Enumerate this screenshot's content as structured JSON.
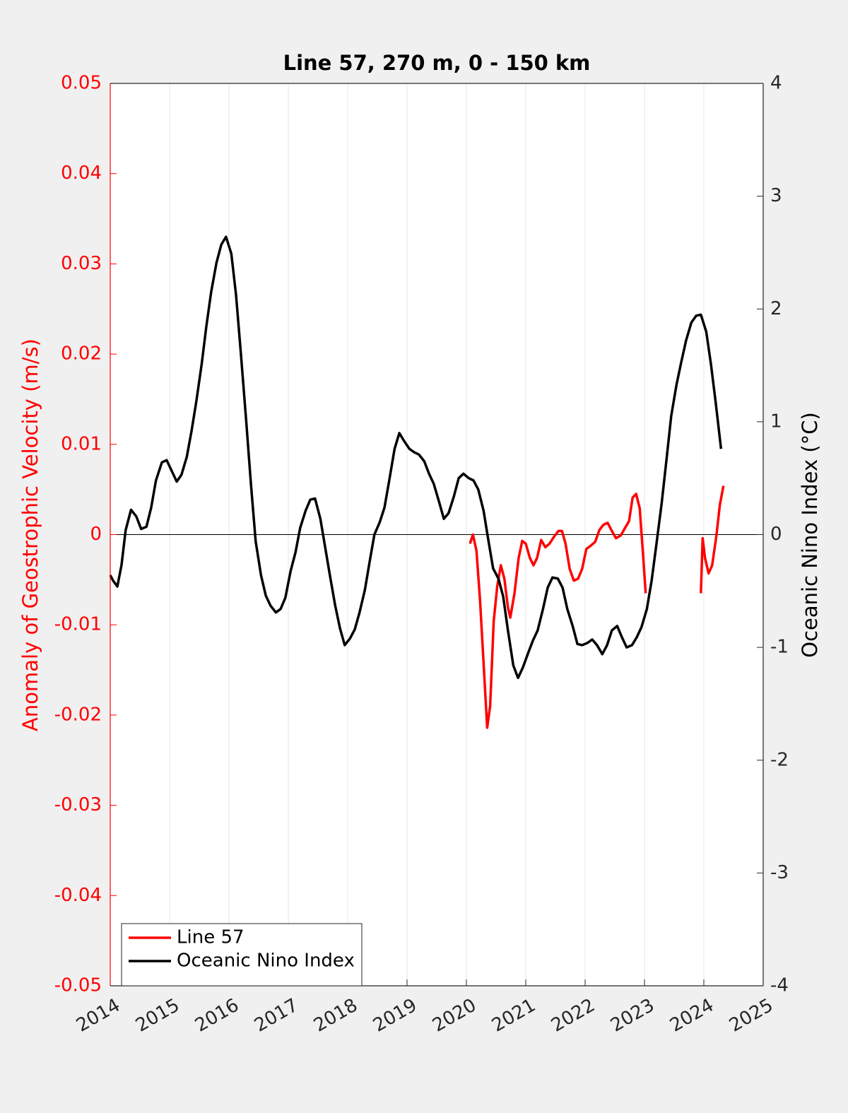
{
  "chart_data": {
    "type": "line",
    "title": "Line 57, 270 m, 0 - 150 km",
    "y_label": "Anomaly of Geostrophic Velocity (m/s)",
    "y2_label": "Oceanic Nino Index (°C)",
    "xlim": [
      2014,
      2025
    ],
    "xticks": [
      2014,
      2015,
      2016,
      2017,
      2018,
      2019,
      2020,
      2021,
      2022,
      2023,
      2024,
      2025
    ],
    "ylim": [
      -0.05,
      0.05
    ],
    "yticks": [
      -0.05,
      -0.04,
      -0.03,
      -0.02,
      -0.01,
      0,
      0.01,
      0.02,
      0.03,
      0.04,
      0.05
    ],
    "y2lim": [
      -4,
      4
    ],
    "y2ticks": [
      -4,
      -3,
      -2,
      -1,
      0,
      1,
      2,
      3,
      4
    ],
    "grid": "x",
    "zero_line": true,
    "legend": "lower left",
    "y_axis_color": "#ff0000",
    "series": [
      {
        "name": "Line 57",
        "color": "#ff0000",
        "axis": "y",
        "x": [
          2020.06,
          2020.11,
          2020.17,
          2020.23,
          2020.29,
          2020.35,
          2020.4,
          2020.46,
          2020.52,
          2020.58,
          2020.64,
          2020.7,
          2020.74,
          2020.81,
          2020.88,
          2020.94,
          2021.0,
          2021.07,
          2021.13,
          2021.19,
          2021.26,
          2021.33,
          2021.4,
          2021.48,
          2021.55,
          2021.61,
          2021.67,
          2021.74,
          2021.81,
          2021.88,
          2021.95,
          2022.02,
          2022.1,
          2022.17,
          2022.24,
          2022.31,
          2022.38,
          2022.45,
          2022.52,
          2022.6,
          2022.67,
          2022.74,
          2022.8,
          2022.86,
          2022.92,
          2022.98,
          2023.02,
          2023.5,
          2023.95,
          2023.98,
          2024.02,
          2024.08,
          2024.14,
          2024.21,
          2024.27,
          2024.33
        ],
        "values": [
          -0.001,
          0.0,
          -0.0018,
          -0.0073,
          -0.0143,
          -0.0214,
          -0.019,
          -0.0096,
          -0.0057,
          -0.0034,
          -0.0049,
          -0.0081,
          -0.0092,
          -0.0065,
          -0.0026,
          -0.0007,
          -0.001,
          -0.0026,
          -0.0034,
          -0.0026,
          -0.0006,
          -0.0014,
          -0.001,
          -0.0002,
          0.0004,
          0.0004,
          -0.001,
          -0.0038,
          -0.0051,
          -0.0049,
          -0.0038,
          -0.0016,
          -0.0012,
          -0.0008,
          0.0005,
          0.0011,
          0.0013,
          0.0004,
          -0.0004,
          -0.0001,
          0.0007,
          0.0015,
          0.0041,
          0.0045,
          0.0029,
          -0.0026,
          -0.0065,
          null,
          -0.0065,
          -0.0004,
          -0.0026,
          -0.0043,
          -0.0034,
          -0.0002,
          0.0033,
          0.0054
        ]
      },
      {
        "name": "Oceanic Nino Index",
        "color": "#000000",
        "axis": "y2",
        "x": [
          2014.0,
          2014.05,
          2014.12,
          2014.19,
          2014.26,
          2014.35,
          2014.44,
          2014.52,
          2014.61,
          2014.69,
          2014.77,
          2014.87,
          2014.95,
          2015.04,
          2015.12,
          2015.2,
          2015.29,
          2015.37,
          2015.45,
          2015.54,
          2015.62,
          2015.7,
          2015.79,
          2015.87,
          2015.95,
          2016.04,
          2016.12,
          2016.2,
          2016.29,
          2016.37,
          2016.45,
          2016.54,
          2016.62,
          2016.7,
          2016.79,
          2016.87,
          2016.95,
          2017.04,
          2017.12,
          2017.2,
          2017.29,
          2017.37,
          2017.45,
          2017.54,
          2017.62,
          2017.7,
          2017.79,
          2017.87,
          2017.95,
          2018.04,
          2018.12,
          2018.2,
          2018.29,
          2018.37,
          2018.45,
          2018.54,
          2018.62,
          2018.7,
          2018.79,
          2018.87,
          2018.95,
          2019.04,
          2019.12,
          2019.2,
          2019.29,
          2019.37,
          2019.45,
          2019.54,
          2019.62,
          2019.7,
          2019.79,
          2019.87,
          2019.95,
          2020.04,
          2020.12,
          2020.2,
          2020.29,
          2020.37,
          2020.45,
          2020.54,
          2020.62,
          2020.7,
          2020.79,
          2020.87,
          2020.95,
          2021.04,
          2021.12,
          2021.2,
          2021.29,
          2021.37,
          2021.45,
          2021.54,
          2021.62,
          2021.7,
          2021.79,
          2021.87,
          2021.95,
          2022.04,
          2022.12,
          2022.2,
          2022.29,
          2022.37,
          2022.45,
          2022.54,
          2022.62,
          2022.7,
          2022.79,
          2022.87,
          2022.95,
          2023.04,
          2023.12,
          2023.2,
          2023.29,
          2023.37,
          2023.45,
          2023.54,
          2023.62,
          2023.7,
          2023.79,
          2023.87,
          2023.95,
          2024.04,
          2024.12,
          2024.2,
          2024.29
        ],
        "values": [
          -0.36,
          -0.41,
          -0.46,
          -0.27,
          0.04,
          0.22,
          0.16,
          0.05,
          0.07,
          0.24,
          0.48,
          0.64,
          0.66,
          0.56,
          0.47,
          0.53,
          0.69,
          0.92,
          1.18,
          1.51,
          1.85,
          2.15,
          2.41,
          2.57,
          2.64,
          2.49,
          2.12,
          1.61,
          1.01,
          0.45,
          -0.06,
          -0.36,
          -0.54,
          -0.63,
          -0.69,
          -0.66,
          -0.56,
          -0.32,
          -0.16,
          0.06,
          0.21,
          0.31,
          0.32,
          0.14,
          -0.11,
          -0.36,
          -0.63,
          -0.83,
          -0.98,
          -0.92,
          -0.84,
          -0.69,
          -0.49,
          -0.24,
          0.0,
          0.11,
          0.24,
          0.48,
          0.76,
          0.9,
          0.83,
          0.76,
          0.73,
          0.71,
          0.65,
          0.54,
          0.45,
          0.29,
          0.14,
          0.19,
          0.34,
          0.5,
          0.54,
          0.5,
          0.48,
          0.4,
          0.21,
          -0.05,
          -0.3,
          -0.39,
          -0.55,
          -0.85,
          -1.16,
          -1.27,
          -1.18,
          -1.05,
          -0.94,
          -0.85,
          -0.66,
          -0.47,
          -0.38,
          -0.39,
          -0.47,
          -0.66,
          -0.81,
          -0.97,
          -0.98,
          -0.96,
          -0.93,
          -0.98,
          -1.06,
          -0.98,
          -0.85,
          -0.81,
          -0.91,
          -1.0,
          -0.98,
          -0.91,
          -0.82,
          -0.66,
          -0.41,
          -0.09,
          0.28,
          0.66,
          1.05,
          1.33,
          1.53,
          1.72,
          1.88,
          1.94,
          1.95,
          1.8,
          1.51,
          1.17,
          0.76
        ]
      }
    ]
  }
}
